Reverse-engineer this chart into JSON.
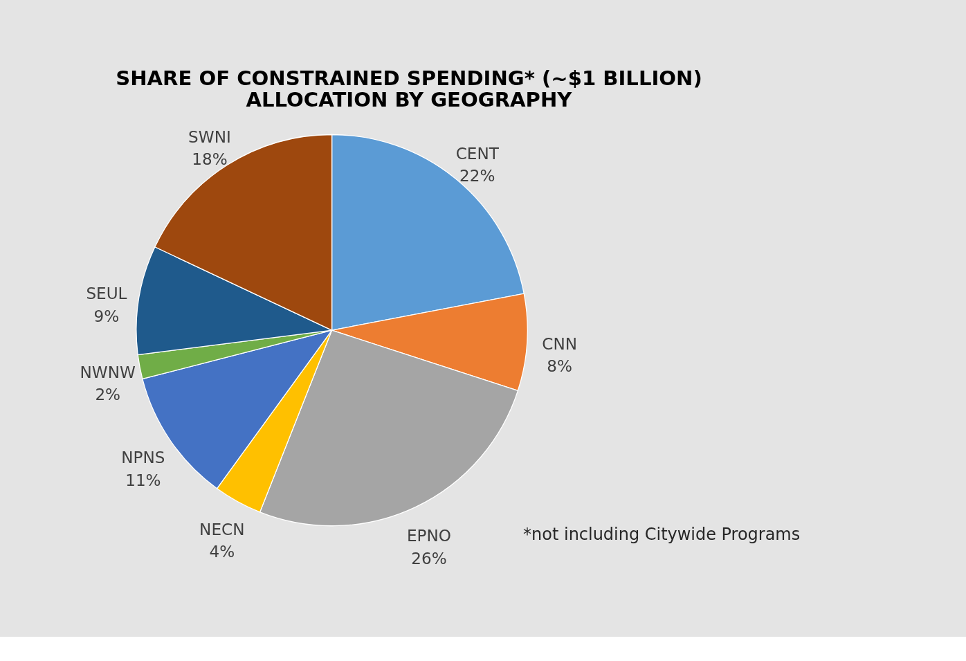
{
  "chart_data": {
    "type": "pie",
    "title": "SHARE OF CONSTRAINED SPENDING* (~$1 BILLION)\nALLOCATION BY GEOGRAPHY",
    "categories": [
      "CENT",
      "CNN",
      "EPNO",
      "NECN",
      "NPNS",
      "NWNW",
      "SEUL",
      "SWNI"
    ],
    "values": [
      22,
      8,
      26,
      4,
      11,
      2,
      9,
      18
    ],
    "value_labels": [
      "22%",
      "8%",
      "26%",
      "4%",
      "11%",
      "2%",
      "9%",
      "18%"
    ],
    "colors": [
      "#5b9bd5",
      "#ed7d31",
      "#a5a5a5",
      "#ffc000",
      "#4472c4",
      "#70ad47",
      "#1f5a8c",
      "#9e480e"
    ],
    "legend": false,
    "annotations": [
      "*not including Citywide Programs"
    ]
  }
}
